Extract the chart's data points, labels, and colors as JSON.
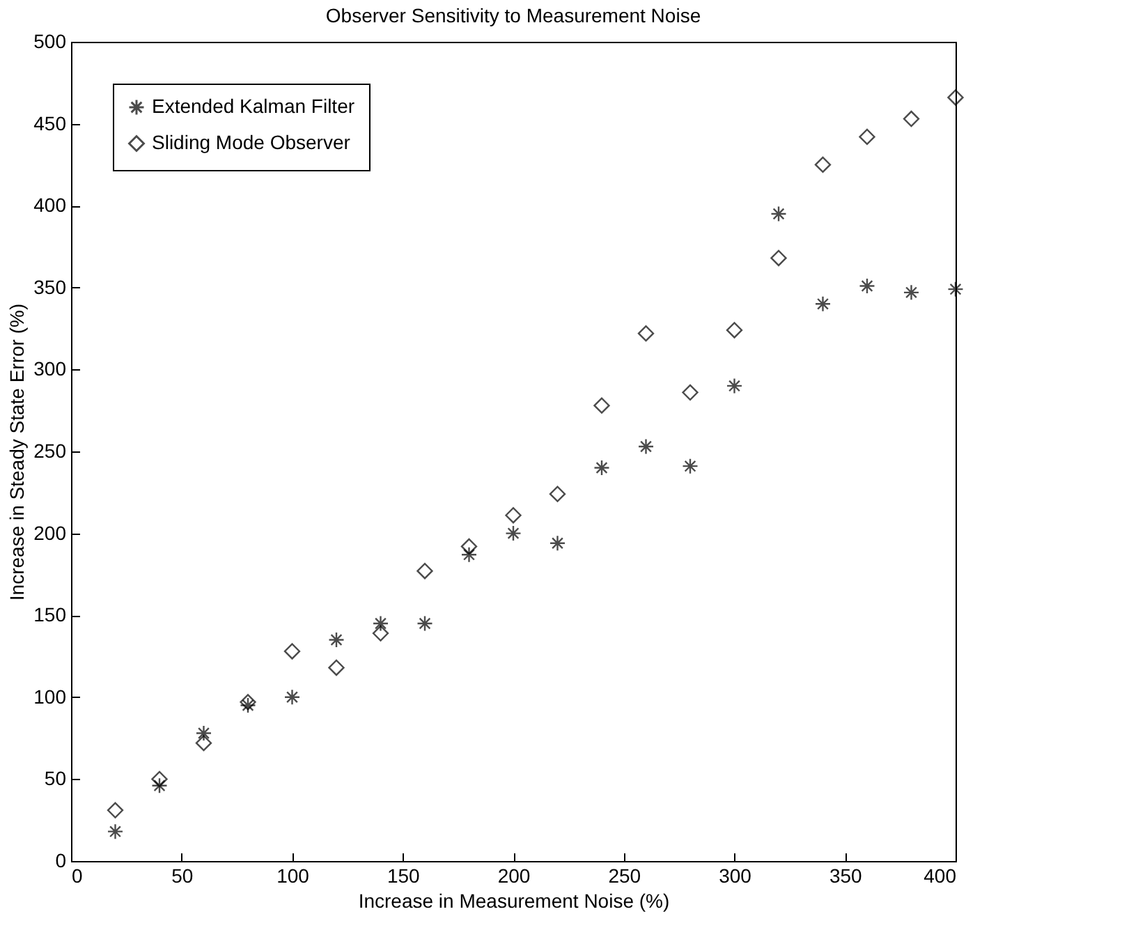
{
  "chart_data": {
    "type": "scatter",
    "title": "Observer Sensitivity to Measurement Noise",
    "xlabel": "Increase in Measurement Noise (%)",
    "ylabel": "Increase in Steady State Error (%)",
    "x": [
      20,
      40,
      60,
      80,
      100,
      120,
      140,
      160,
      180,
      200,
      220,
      240,
      260,
      280,
      300,
      320,
      340,
      360,
      380,
      400
    ],
    "series": [
      {
        "name": "Extended Kalman Filter",
        "color": "#000000",
        "marker": "cross",
        "values": [
          18,
          46,
          78,
          95,
          100,
          135,
          145,
          145,
          187,
          200,
          194,
          240,
          253,
          241,
          290,
          395,
          340,
          351,
          347,
          349
        ]
      },
      {
        "name": "Sliding Mode Observer",
        "color": "#000000",
        "marker": "diamond",
        "values": [
          31,
          50,
          72,
          97,
          128,
          118,
          139,
          177,
          192,
          211,
          224,
          278,
          322,
          286,
          324,
          368,
          425,
          442,
          453,
          466
        ]
      }
    ],
    "xlim": [
      0,
      400
    ],
    "xticks": [
      0,
      50,
      100,
      150,
      200,
      250,
      300,
      350,
      400
    ],
    "ylim": [
      0,
      500
    ],
    "yticks": [
      0,
      50,
      100,
      150,
      200,
      250,
      300,
      350,
      400,
      450,
      500
    ],
    "grid": false,
    "legend": "top left"
  }
}
